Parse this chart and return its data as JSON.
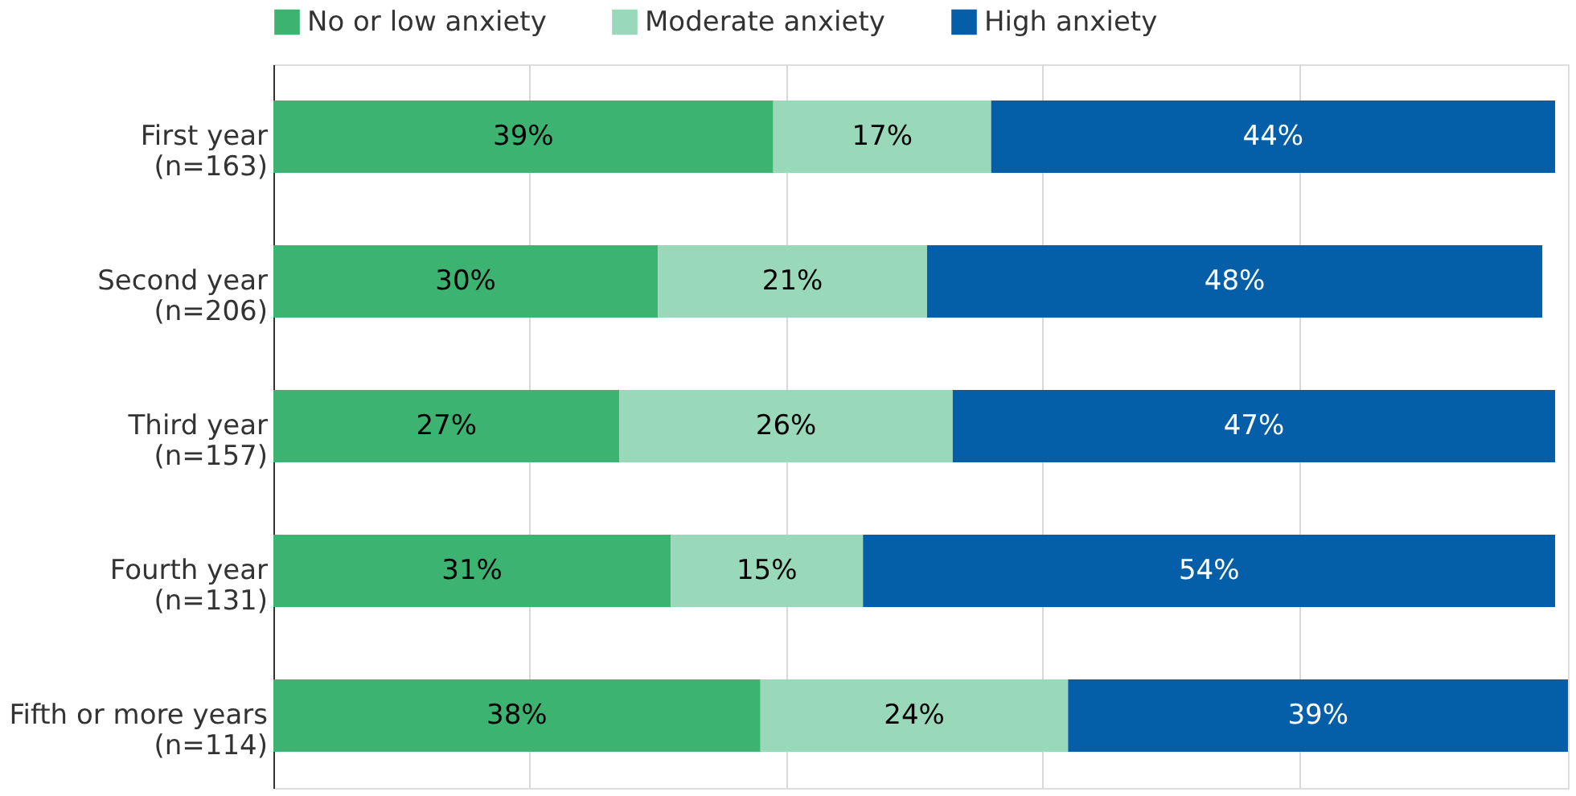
{
  "chart_data": {
    "type": "bar",
    "orientation": "horizontal",
    "stacked": true,
    "categories": [
      "First year\n(n=163)",
      "Second year\n(n=206)",
      "Third year\n(n=157)",
      "Fourth year\n(n=131)",
      "Fifth or more years\n(n=114)"
    ],
    "series": [
      {
        "name": "No or low anxiety",
        "color": "#3cb371",
        "values": [
          39,
          30,
          27,
          31,
          38
        ],
        "value_labels": [
          "39%",
          "30%",
          "27%",
          "31%",
          "38%"
        ]
      },
      {
        "name": "Moderate anxiety",
        "color": "#99d8b9",
        "values": [
          17,
          21,
          26,
          15,
          24
        ],
        "value_labels": [
          "17%",
          "21%",
          "26%",
          "15%",
          "24%"
        ]
      },
      {
        "name": "High anxiety",
        "color": "#045fa8",
        "values": [
          44,
          48,
          47,
          54,
          39
        ],
        "value_labels": [
          "44%",
          "48%",
          "47%",
          "54%",
          "39%"
        ]
      }
    ],
    "xlim": [
      0,
      101
    ],
    "xticks": [
      {
        "value": 20,
        "label": null
      },
      {
        "value": 40,
        "label": null
      },
      {
        "value": 60,
        "label": null
      },
      {
        "value": 80,
        "label": null
      }
    ],
    "grid": "x",
    "legend": "top",
    "tick_labels": "y"
  }
}
